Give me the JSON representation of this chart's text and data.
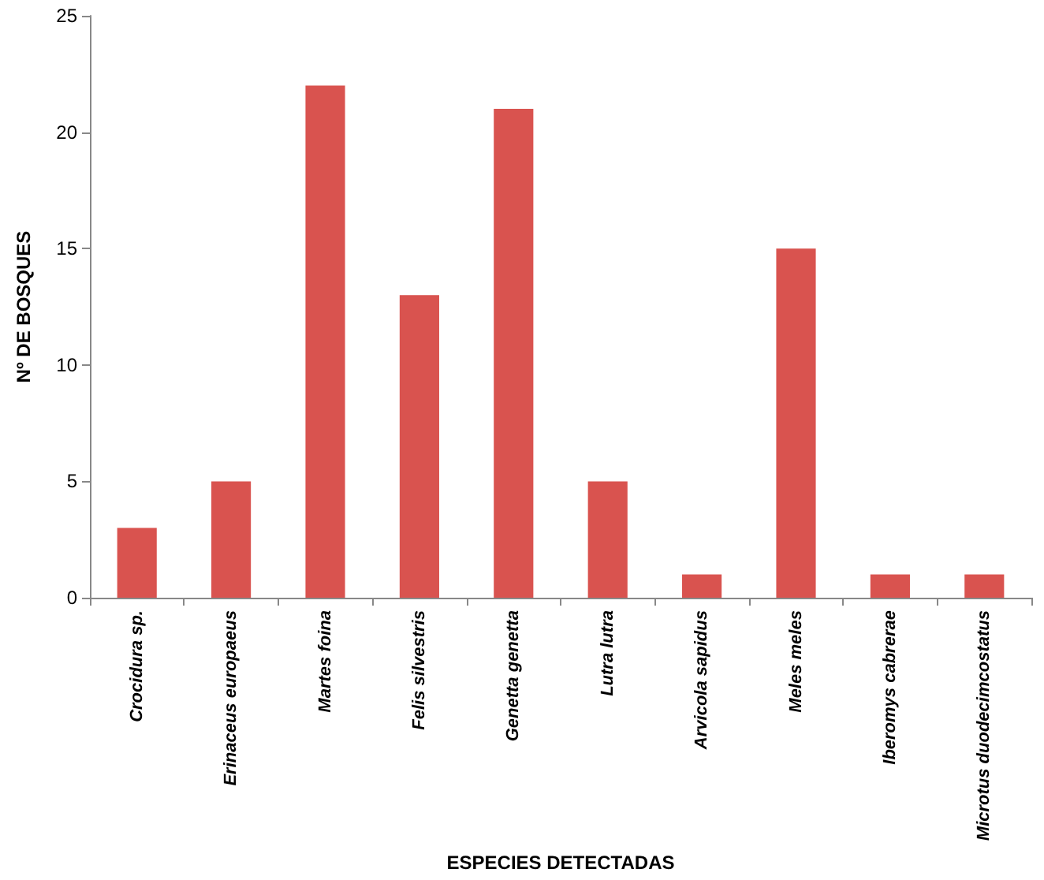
{
  "chart_data": {
    "type": "bar",
    "xlabel": "ESPECIES DETECTADAS",
    "ylabel": "Nº DE BOSQUES",
    "categories": [
      "Crocidura sp.",
      "Erinaceus europaeus",
      "Martes foina",
      "Felis silvestris",
      "Genetta genetta",
      "Lutra lutra",
      "Arvicola sapidus",
      "Meles meles",
      "Iberomys cabrerae",
      "Microtus duodecimcostatus"
    ],
    "values": [
      3,
      5,
      22,
      13,
      21,
      5,
      1,
      15,
      1,
      1
    ],
    "color": "#d9534f",
    "ylim": [
      0,
      25
    ],
    "yticks": [
      0,
      5,
      10,
      15,
      20,
      25
    ],
    "grid": false
  }
}
